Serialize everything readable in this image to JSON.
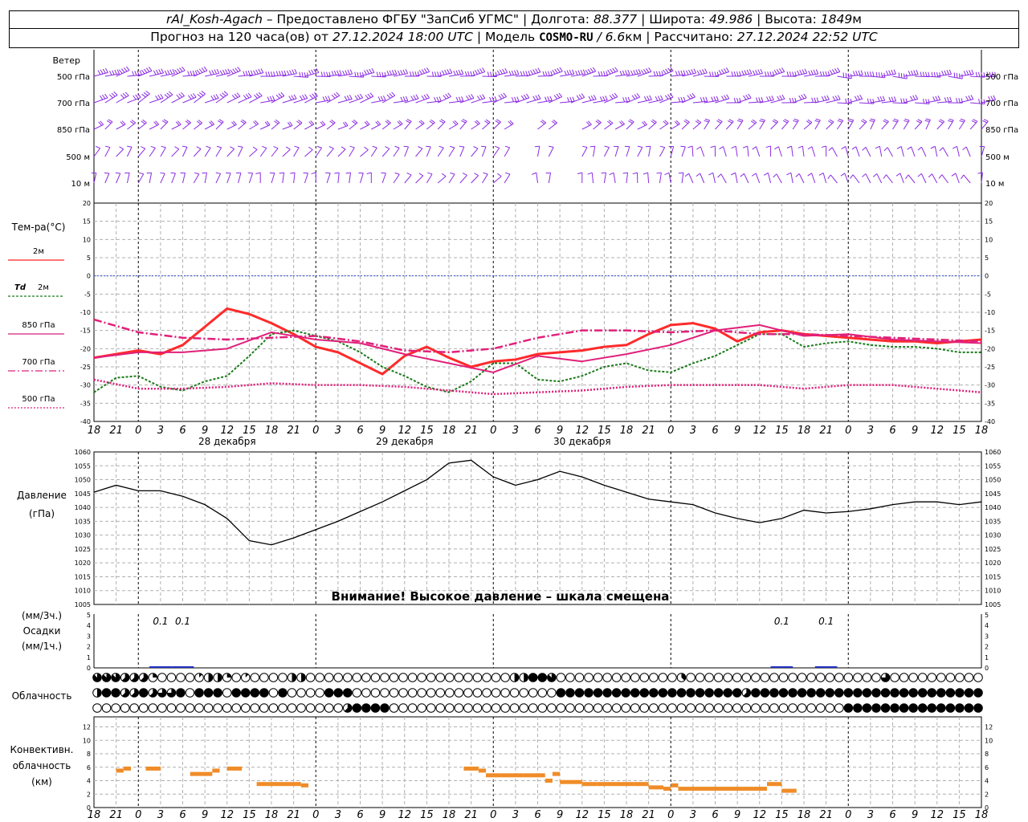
{
  "header": {
    "station": "rAl_Kosh-Agach",
    "provider": "– Предоставлено ФГБУ \"ЗапСиб УГМС\" |",
    "lon_label": "Долгота:",
    "lon_value": "88.377",
    "lat_label": "| Широта:",
    "lat_value": "49.986",
    "alt_label": "| Высота:",
    "alt_value": "1849",
    "alt_unit": "м",
    "forecast_text": "Прогноз на 120 часа(ов) от",
    "forecast_time": "27.12.2024 18:00 UTC",
    "model_label": "| Модель",
    "model_name": "COSMO-RU",
    "model_res": "/ 6.6",
    "model_res_unit": "км",
    "calc_label": "| Рассчитано:",
    "calc_time": "27.12.2024 22:52 UTC"
  },
  "time_axis": {
    "hour_labels": [
      "18",
      "21",
      "0",
      "3",
      "6",
      "9",
      "12",
      "15",
      "18",
      "21",
      "0",
      "3",
      "6",
      "9",
      "12",
      "15",
      "18",
      "21",
      "0",
      "3",
      "6",
      "9",
      "12",
      "15",
      "18",
      "21",
      "0"
    ],
    "dates": [
      "28 декабря",
      "29 декабря",
      "30 декабря"
    ]
  },
  "wind_panel": {
    "title": "Ветер",
    "levels": [
      "500 гПа",
      "700 гПа",
      "850 гПа",
      "500 м",
      "10 м"
    ]
  },
  "temp_panel": {
    "title": "Тем-ра(°C)",
    "legend": [
      {
        "label": "2м",
        "color": "#ff2020",
        "dash": ""
      },
      {
        "label": "2м",
        "prefix": "Td",
        "color": "#1a7a1a",
        "dash": "3,2"
      },
      {
        "label": "850 гПа",
        "color": "#d0207a",
        "dash": ""
      },
      {
        "label": "700 гПа",
        "color": "#e0207a",
        "dash": "9,3,2,3"
      },
      {
        "label": "500 гПа",
        "color": "#e0207a",
        "dash": "2,2"
      }
    ]
  },
  "pressure_panel": {
    "title1": "Давление",
    "title2": "(гПа)",
    "warning": "Внимание! Высокое давление – шкала смещена"
  },
  "precip_panel": {
    "title1": "(мм/3ч.)",
    "title2": "Осадки",
    "title3": "(мм/1ч.)",
    "labels": [
      {
        "t": 9,
        "text": "0.1"
      },
      {
        "t": 12,
        "text": "0.1"
      },
      {
        "t": 93,
        "text": "0.1"
      },
      {
        "t": 99,
        "text": "0.1"
      }
    ]
  },
  "cloud_panel": {
    "title": "Облачность",
    "row_high": "7775552000014420100004400000000000000000000004488700000000000003000000000000000000000600000000000000000000000005005000050000",
    "row_mid": "4885585668088808888080000888000000000000000000000088888888888888888888588888888888888888888888888888",
    "row_low": "00000000000000000000000000058888000000000000000000000000000000000000000000000000088888888888888888888888888888888888888"
  },
  "conv_panel": {
    "title1": "Конвективн.",
    "title2": "облачность",
    "title3": "(км)"
  },
  "chart_data": [
    {
      "type": "line",
      "title": "Тем-ра(°C)",
      "ylim": [
        -40,
        20
      ],
      "x_unit": "hours since 27.12.2024 18:00 UTC",
      "series": [
        {
          "name": "2м",
          "x": [
            0,
            3,
            6,
            9,
            12,
            15,
            18,
            21,
            24,
            27,
            30,
            33,
            36,
            39,
            42,
            45,
            48,
            51,
            54,
            57,
            60,
            63,
            66,
            69,
            72,
            75,
            78,
            81,
            84,
            87,
            90,
            93,
            96,
            99,
            102,
            105,
            108,
            111,
            114,
            117,
            120
          ],
          "values": [
            -22.5,
            -21.5,
            -20.5,
            -21.5,
            -19,
            -14,
            -9,
            -10.5,
            -13,
            -16,
            -19.5,
            -21,
            -24,
            -27,
            -22,
            -19.5,
            -22.5,
            -25,
            -23.5,
            -23,
            -21.5,
            -21,
            -20.5,
            -19.5,
            -19,
            -16,
            -13.5,
            -13,
            -14.5,
            -18,
            -15.5,
            -15,
            -16,
            -16.5,
            -17,
            -17.5,
            -18,
            -18,
            -18.5,
            -18,
            -17.5
          ]
        },
        {
          "name": "Td 2м",
          "x": [
            0,
            3,
            6,
            9,
            12,
            15,
            18,
            21,
            24,
            27,
            30,
            33,
            36,
            39,
            42,
            45,
            48,
            51,
            54,
            57,
            60,
            63,
            66,
            69,
            72,
            75,
            78,
            81,
            84,
            87,
            90,
            93,
            96,
            99,
            102,
            105,
            108,
            111,
            114,
            117,
            120
          ],
          "values": [
            -32,
            -28,
            -27.5,
            -30.5,
            -31.5,
            -29,
            -27.5,
            -22,
            -16,
            -15,
            -16.5,
            -18,
            -21,
            -25,
            -27.5,
            -30.5,
            -32,
            -29,
            -24,
            -24,
            -28.5,
            -29,
            -27.5,
            -25,
            -24,
            -26,
            -26.5,
            -24,
            -22,
            -19,
            -16,
            -16,
            -19.5,
            -18.5,
            -18,
            -19,
            -19.5,
            -19.5,
            -20,
            -21,
            -21
          ]
        },
        {
          "name": "850 гПа",
          "x": [
            0,
            6,
            12,
            18,
            24,
            30,
            36,
            42,
            48,
            54,
            60,
            66,
            72,
            78,
            84,
            90,
            96,
            102,
            108,
            114,
            120
          ],
          "values": [
            -22.5,
            -21,
            -21,
            -20,
            -15.5,
            -17.5,
            -18.5,
            -21.5,
            -24,
            -26.5,
            -22,
            -23.5,
            -21.5,
            -19,
            -15,
            -13.5,
            -16.5,
            -16,
            -17.5,
            -18,
            -18.5
          ]
        },
        {
          "name": "700 гПа",
          "x": [
            0,
            6,
            12,
            18,
            24,
            30,
            36,
            42,
            48,
            54,
            60,
            66,
            72,
            78,
            84,
            90,
            96,
            102,
            108,
            114,
            120
          ],
          "values": [
            -12,
            -15.5,
            -17,
            -17.5,
            -17,
            -16.5,
            -18,
            -20.5,
            -21,
            -20,
            -17,
            -15,
            -15,
            -15.5,
            -15,
            -16,
            -16,
            -16.5,
            -17,
            -17.5,
            -18
          ]
        },
        {
          "name": "500 гПа",
          "x": [
            0,
            6,
            12,
            18,
            24,
            30,
            36,
            42,
            48,
            54,
            60,
            66,
            72,
            78,
            84,
            90,
            96,
            102,
            108,
            114,
            120
          ],
          "values": [
            -28.5,
            -31,
            -31,
            -30.5,
            -29.5,
            -30,
            -30,
            -30.5,
            -31.5,
            -32.5,
            -32,
            -31.5,
            -30.5,
            -30,
            -30,
            -30,
            -31,
            -30,
            -30,
            -31,
            -32
          ]
        }
      ]
    },
    {
      "type": "line",
      "title": "Давление",
      "ylabel": "(гПа)",
      "ylim": [
        1005,
        1060
      ],
      "x_unit": "hours since 27.12.2024 18:00 UTC",
      "series": [
        {
          "name": "Давление",
          "x": [
            0,
            3,
            6,
            9,
            12,
            15,
            18,
            21,
            24,
            27,
            30,
            33,
            36,
            39,
            42,
            45,
            48,
            51,
            54,
            57,
            60,
            63,
            66,
            69,
            72,
            75,
            78,
            81,
            84,
            87,
            90,
            93,
            96,
            99,
            102,
            105,
            108,
            111,
            114,
            117,
            120
          ],
          "values": [
            1045.5,
            1048,
            1046,
            1046,
            1044,
            1041,
            1036,
            1028,
            1026.5,
            1029,
            1032,
            1035,
            1038.5,
            1042,
            1046,
            1050,
            1056,
            1057,
            1051,
            1048,
            1050,
            1053,
            1051,
            1048,
            1045.5,
            1043,
            1042,
            1041,
            1038,
            1036,
            1034.5,
            1036,
            1039,
            1038,
            1038.5,
            1039.5,
            1041,
            1042,
            1042,
            1041,
            1042
          ]
        }
      ]
    },
    {
      "type": "bar",
      "title": "Осадки",
      "ylim": [
        0,
        5
      ],
      "x_unit": "hours since 27.12.2024 18:00 UTC",
      "series": [
        {
          "name": "Осадки",
          "x": [
            9,
            12,
            93,
            99
          ],
          "values": [
            0.1,
            0.1,
            0.1,
            0.1
          ]
        }
      ]
    },
    {
      "type": "bar",
      "title": "Конвективн. облачность",
      "ylabel": "(км)",
      "ylim": [
        0,
        13
      ],
      "x_unit": "hours since 27.12.2024 18:00 UTC",
      "segments": [
        [
          3,
          4,
          5.5
        ],
        [
          4,
          5,
          5.8
        ],
        [
          7,
          9,
          5.8
        ],
        [
          13,
          15,
          5
        ],
        [
          15,
          16,
          5
        ],
        [
          16,
          17,
          5.5
        ],
        [
          18,
          20,
          5.8
        ],
        [
          22,
          28,
          3.5
        ],
        [
          28,
          29,
          3.3
        ],
        [
          50,
          52,
          5.8
        ],
        [
          52,
          53,
          5.5
        ],
        [
          53,
          55,
          4.8
        ],
        [
          55,
          58,
          4.8
        ],
        [
          58,
          61,
          4.8
        ],
        [
          61,
          62,
          4
        ],
        [
          62,
          63,
          5
        ],
        [
          63,
          66,
          3.8
        ],
        [
          66,
          68,
          3.5
        ],
        [
          68,
          73,
          3.5
        ],
        [
          73,
          75,
          3.5
        ],
        [
          75,
          77,
          3
        ],
        [
          77,
          78,
          2.8
        ],
        [
          78,
          79,
          3.3
        ],
        [
          79,
          84,
          2.8
        ],
        [
          84,
          91,
          2.8
        ],
        [
          91,
          93,
          3.5
        ],
        [
          93,
          95,
          2.5
        ]
      ]
    }
  ]
}
